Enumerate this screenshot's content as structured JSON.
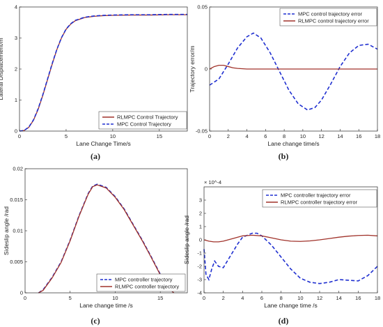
{
  "chart_data": [
    {
      "type": "line",
      "caption": "(a)",
      "xlabel": "Lane Change Time/s",
      "ylabel": "Lateral Displacement/m",
      "xlim": [
        0,
        18
      ],
      "ylim": [
        0,
        4
      ],
      "xticks": [
        0,
        5,
        10,
        15
      ],
      "yticks": [
        0,
        1,
        2,
        3,
        4
      ],
      "legend_position": "bottom-right",
      "grid": false,
      "series": [
        {
          "name": "RLMPC Control Trajectory",
          "color": "#a0322a",
          "style": "solid",
          "x": [
            0,
            0.5,
            1,
            1.5,
            2,
            2.5,
            3,
            3.5,
            4,
            4.5,
            5,
            5.5,
            6,
            7,
            8,
            9,
            10,
            12,
            14,
            16,
            18
          ],
          "y": [
            0,
            0.02,
            0.12,
            0.35,
            0.7,
            1.15,
            1.65,
            2.15,
            2.62,
            3.0,
            3.28,
            3.45,
            3.56,
            3.66,
            3.7,
            3.72,
            3.73,
            3.74,
            3.74,
            3.75,
            3.75
          ]
        },
        {
          "name": "MPC Control Trajectory",
          "color": "#1f2fd0",
          "style": "dashed",
          "x": [
            0,
            0.5,
            1,
            1.5,
            2,
            2.5,
            3,
            3.5,
            4,
            4.5,
            5,
            5.5,
            6,
            7,
            8,
            9,
            10,
            12,
            14,
            16,
            18
          ],
          "y": [
            0,
            0.02,
            0.13,
            0.36,
            0.72,
            1.17,
            1.67,
            2.17,
            2.63,
            3.01,
            3.29,
            3.46,
            3.57,
            3.67,
            3.71,
            3.73,
            3.74,
            3.75,
            3.75,
            3.76,
            3.76
          ]
        }
      ]
    },
    {
      "type": "line",
      "caption": "(b)",
      "xlabel": "Lane change time/s",
      "ylabel": "Trajectory error/m",
      "xlim": [
        0,
        18
      ],
      "ylim": [
        -0.05,
        0.05
      ],
      "xticks": [
        0,
        2,
        4,
        6,
        8,
        10,
        12,
        14,
        16,
        18
      ],
      "yticks": [
        -0.05,
        0,
        0.05
      ],
      "legend_position": "top-right",
      "grid": false,
      "series": [
        {
          "name": "MPC control trajectory error",
          "color": "#1f2fd0",
          "style": "dashed",
          "x": [
            0,
            1,
            2,
            3,
            4,
            4.7,
            5.5,
            6.5,
            7.5,
            8.5,
            9.5,
            10.5,
            11.3,
            12,
            13,
            14,
            15,
            16,
            17,
            18
          ],
          "y": [
            -0.013,
            -0.008,
            0.004,
            0.017,
            0.026,
            0.029,
            0.025,
            0.013,
            -0.002,
            -0.017,
            -0.028,
            -0.033,
            -0.031,
            -0.025,
            -0.012,
            0.002,
            0.013,
            0.019,
            0.02,
            0.016
          ]
        },
        {
          "name": "RLMPC control trajectory error",
          "color": "#a0322a",
          "style": "solid",
          "x": [
            0,
            0.5,
            1,
            1.5,
            2,
            2.5,
            3,
            4,
            6,
            8,
            10,
            12,
            14,
            16,
            18
          ],
          "y": [
            0,
            0.002,
            0.003,
            0.003,
            0.002,
            0.001,
            0.0005,
            0,
            0,
            0,
            0,
            0,
            0,
            0,
            0
          ]
        }
      ]
    },
    {
      "type": "line",
      "caption": "(c)",
      "xlabel": "Lane change time /s",
      "ylabel": "Sideslip angle /rad",
      "xlim": [
        0,
        18
      ],
      "ylim": [
        0,
        0.02
      ],
      "xticks": [
        0,
        5,
        10,
        15
      ],
      "yticks": [
        0,
        0.005,
        0.01,
        0.015,
        0.02
      ],
      "legend_position": "bottom-right",
      "grid": false,
      "series": [
        {
          "name": "MPC controller trajectory",
          "color": "#1f2fd0",
          "style": "dashed",
          "x": [
            1.5,
            2,
            3,
            4,
            5,
            6,
            7,
            7.5,
            8,
            9,
            10,
            11,
            12,
            13,
            14,
            15,
            15.8,
            16.5
          ],
          "y": [
            0,
            0.0005,
            0.0025,
            0.005,
            0.0085,
            0.0125,
            0.016,
            0.0172,
            0.0175,
            0.017,
            0.0155,
            0.0135,
            0.011,
            0.0085,
            0.0058,
            0.003,
            0.001,
            0
          ]
        },
        {
          "name": "RLMPC controller trajectory",
          "color": "#a0322a",
          "style": "solid",
          "x": [
            1.5,
            2,
            3,
            4,
            5,
            6,
            7,
            7.5,
            8,
            9,
            10,
            11,
            12,
            13,
            14,
            15,
            15.8,
            16.5
          ],
          "y": [
            0,
            0.0004,
            0.0024,
            0.0049,
            0.0084,
            0.0124,
            0.0159,
            0.0171,
            0.0174,
            0.0169,
            0.0154,
            0.0134,
            0.0109,
            0.0084,
            0.0057,
            0.0029,
            0.0009,
            0
          ]
        }
      ]
    },
    {
      "type": "line",
      "caption": "(d)",
      "xlabel": "Lane change time /s",
      "ylabel": "Sideslip angle /rad",
      "y_exponent": "× 10^-4",
      "xlim": [
        0,
        18
      ],
      "ylim": [
        -4,
        4
      ],
      "xticks": [
        0,
        2,
        4,
        6,
        8,
        10,
        12,
        14,
        16,
        18
      ],
      "yticks": [
        -4,
        -3,
        -2,
        -1,
        0,
        1,
        2,
        3
      ],
      "legend_position": "top-right",
      "grid": false,
      "series": [
        {
          "name": "MPC controller trajectory error",
          "color": "#1f2fd0",
          "style": "dashed",
          "x": [
            0,
            0.2,
            0.5,
            0.8,
            1.1,
            1.5,
            2,
            2.5,
            3,
            3.5,
            4,
            5,
            5.5,
            6,
            7,
            8,
            9,
            10,
            11,
            12,
            13,
            14,
            15,
            16,
            17,
            18
          ],
          "y": [
            -0.7,
            -2.6,
            -3.0,
            -2.2,
            -1.6,
            -2.0,
            -2.1,
            -1.5,
            -0.9,
            -0.3,
            0.2,
            0.5,
            0.5,
            0.3,
            -0.4,
            -1.3,
            -2.2,
            -2.9,
            -3.2,
            -3.3,
            -3.2,
            -3.0,
            -3.05,
            -3.1,
            -2.7,
            -2.0
          ]
        },
        {
          "name": "RLMPC controller trajectory error",
          "color": "#a0322a",
          "style": "solid",
          "x": [
            0,
            0.5,
            1,
            1.5,
            2,
            3,
            4,
            5,
            6,
            7,
            8,
            9,
            10,
            11,
            12,
            13,
            14,
            15,
            16,
            17,
            18
          ],
          "y": [
            0,
            -0.1,
            -0.15,
            -0.15,
            -0.1,
            0.1,
            0.3,
            0.35,
            0.3,
            0.15,
            0,
            -0.1,
            -0.12,
            -0.08,
            0,
            0.1,
            0.2,
            0.28,
            0.33,
            0.35,
            0.3
          ]
        }
      ]
    }
  ]
}
